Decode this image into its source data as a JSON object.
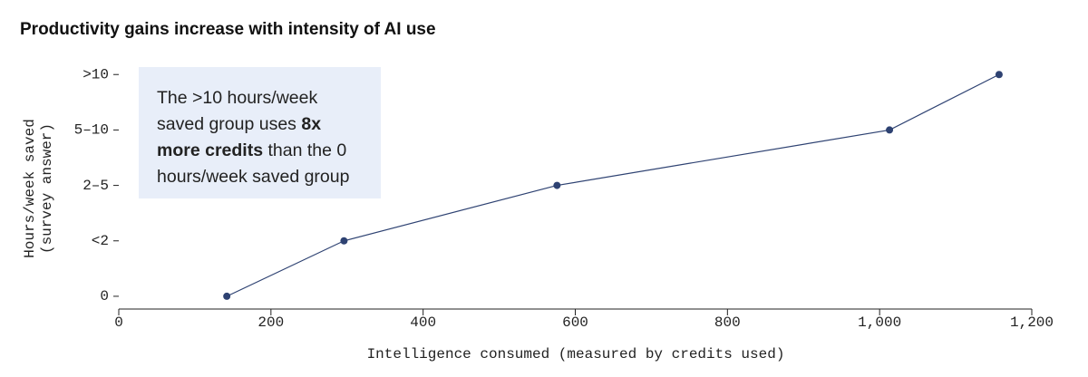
{
  "chart_data": {
    "type": "line",
    "title": "Productivity gains increase with intensity of AI use",
    "x_label": "Intelligence consumed (measured by credits used)",
    "y_label": [
      "Hours/week saved",
      "(survey answer)"
    ],
    "annotation": [
      "The >10 hours/week saved group uses ",
      "8x more credits",
      " than the 0 hours/week saved group"
    ],
    "x": [
      142,
      296,
      576,
      1013,
      1157
    ],
    "values": [
      0,
      1,
      2,
      3,
      4
    ],
    "color": "#2e4272",
    "xlim": [
      0,
      1200
    ],
    "xticks": [
      0,
      200,
      400,
      600,
      800,
      {
        "value": 1000,
        "label": "1,000"
      },
      {
        "value": 1200,
        "label": "1,200"
      }
    ],
    "ylim": [
      -0.23,
      4.2
    ],
    "yticks": [
      0,
      {
        "value": 1,
        "label": "<2"
      },
      {
        "value": 2,
        "label": "2–5"
      },
      {
        "value": 3,
        "label": "5–10"
      },
      {
        "value": 4,
        "label": ">10"
      }
    ]
  }
}
